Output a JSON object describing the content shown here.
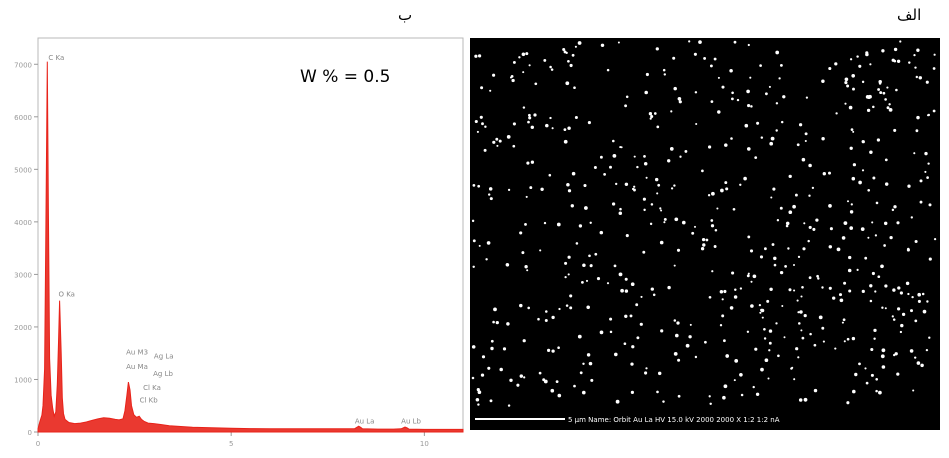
{
  "panel_labels": {
    "left": "ب",
    "right": "الف"
  },
  "chart_data": {
    "type": "line",
    "title": "",
    "xlabel": "",
    "ylabel": "",
    "annotation": "W % = 0.5",
    "xlim": [
      0,
      11
    ],
    "ylim": [
      0,
      7500
    ],
    "x_ticks": [
      "0",
      "5",
      "10"
    ],
    "y_ticks": [
      "0",
      "1000",
      "2000",
      "3000",
      "4000",
      "5000",
      "6000",
      "7000"
    ],
    "series": [
      {
        "color": "#e8231a",
        "points": [
          [
            0.0,
            60
          ],
          [
            0.05,
            200
          ],
          [
            0.1,
            320
          ],
          [
            0.13,
            500
          ],
          [
            0.17,
            1200
          ],
          [
            0.2,
            3500
          ],
          [
            0.24,
            7050
          ],
          [
            0.27,
            4200
          ],
          [
            0.3,
            1400
          ],
          [
            0.34,
            700
          ],
          [
            0.38,
            450
          ],
          [
            0.42,
            300
          ],
          [
            0.46,
            380
          ],
          [
            0.5,
            900
          ],
          [
            0.53,
            1700
          ],
          [
            0.56,
            2500
          ],
          [
            0.6,
            1500
          ],
          [
            0.63,
            650
          ],
          [
            0.66,
            350
          ],
          [
            0.7,
            240
          ],
          [
            0.8,
            180
          ],
          [
            0.95,
            160
          ],
          [
            1.1,
            170
          ],
          [
            1.25,
            190
          ],
          [
            1.4,
            220
          ],
          [
            1.55,
            250
          ],
          [
            1.7,
            270
          ],
          [
            1.85,
            260
          ],
          [
            2.0,
            240
          ],
          [
            2.1,
            230
          ],
          [
            2.2,
            250
          ],
          [
            2.25,
            400
          ],
          [
            2.3,
            700
          ],
          [
            2.34,
            950
          ],
          [
            2.38,
            800
          ],
          [
            2.42,
            500
          ],
          [
            2.48,
            330
          ],
          [
            2.55,
            280
          ],
          [
            2.62,
            300
          ],
          [
            2.68,
            240
          ],
          [
            2.75,
            200
          ],
          [
            2.85,
            170
          ],
          [
            3.0,
            160
          ],
          [
            3.2,
            140
          ],
          [
            3.4,
            120
          ],
          [
            3.6,
            110
          ],
          [
            3.8,
            100
          ],
          [
            4.0,
            90
          ],
          [
            4.5,
            80
          ],
          [
            5.0,
            70
          ],
          [
            5.5,
            65
          ],
          [
            6.0,
            60
          ],
          [
            6.5,
            60
          ],
          [
            7.0,
            60
          ],
          [
            7.5,
            60
          ],
          [
            8.0,
            60
          ],
          [
            8.2,
            65
          ],
          [
            8.3,
            110
          ],
          [
            8.35,
            90
          ],
          [
            8.4,
            60
          ],
          [
            8.8,
            55
          ],
          [
            9.2,
            55
          ],
          [
            9.4,
            60
          ],
          [
            9.5,
            95
          ],
          [
            9.55,
            80
          ],
          [
            9.6,
            55
          ],
          [
            10.0,
            50
          ],
          [
            10.5,
            50
          ],
          [
            11.0,
            50
          ]
        ]
      }
    ],
    "peak_labels": [
      {
        "text": "C Ka",
        "x": 0.27,
        "y": 7080
      },
      {
        "text": "O Ka",
        "x": 0.53,
        "y": 2580
      },
      {
        "text": "Au M3",
        "x": 2.28,
        "y": 1480
      },
      {
        "text": "Au Ma",
        "x": 2.28,
        "y": 1200
      },
      {
        "text": "Ag La",
        "x": 3.0,
        "y": 1400
      },
      {
        "text": "Ag Lb",
        "x": 2.98,
        "y": 1070
      },
      {
        "text": "Cl Ka",
        "x": 2.72,
        "y": 800
      },
      {
        "text": "Cl Kb",
        "x": 2.63,
        "y": 560
      },
      {
        "text": "Au La",
        "x": 8.2,
        "y": 160
      },
      {
        "text": "Au Lb",
        "x": 9.4,
        "y": 160
      }
    ]
  },
  "map_data": {
    "background": "#000000",
    "dot_color": "#ffffff",
    "dot_count": 620,
    "seed": 7,
    "scale_bar_text": "5 µm   Name: Orbit Au La   HV 15.0 kV   2000 2000 X   1:2 1:2 nA"
  }
}
